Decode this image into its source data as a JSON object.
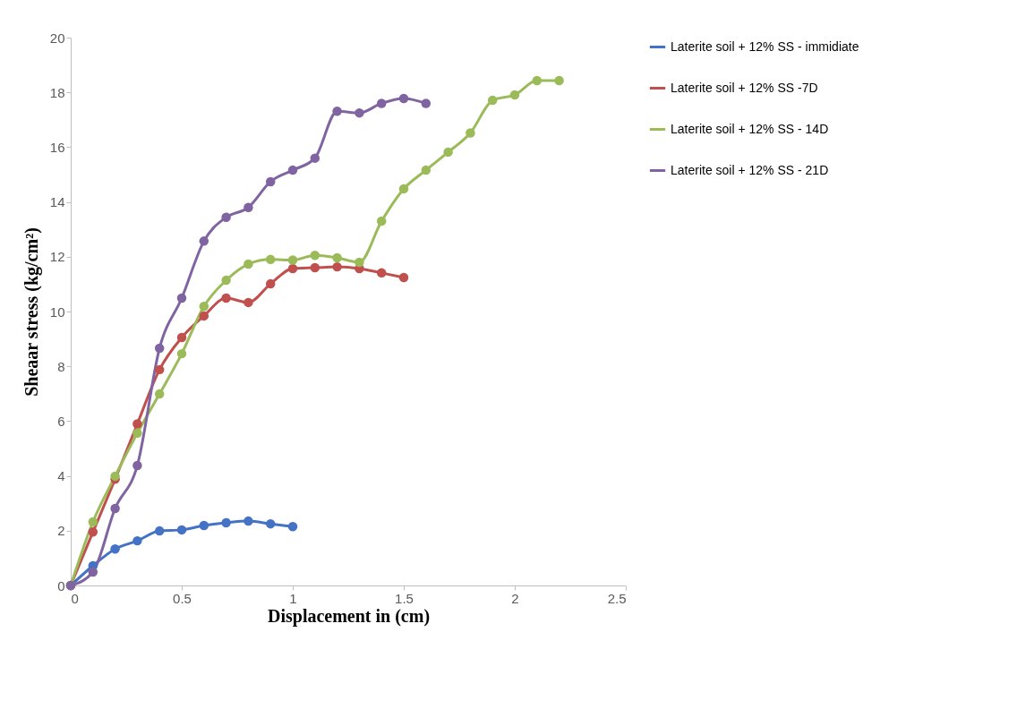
{
  "chart_data": {
    "type": "line",
    "xlabel": "Displacement in (cm)",
    "ylabel": "Sheaar stress (kg/cm²)",
    "xlim": [
      0,
      2.5
    ],
    "xticks": [
      0,
      0.5,
      1,
      1.5,
      2,
      2.5
    ],
    "ylim": [
      0,
      20
    ],
    "yticks": [
      0,
      2,
      4,
      6,
      8,
      10,
      12,
      14,
      16,
      18,
      20
    ],
    "grid": false,
    "legend": "right",
    "marker": "circle",
    "line_style": "solid",
    "series": [
      {
        "name": "Laterite soil + 12% SS - immidiate",
        "color": "#4472c4",
        "x": [
          0,
          0.1,
          0.2,
          0.3,
          0.4,
          0.5,
          0.6,
          0.7,
          0.8,
          0.9,
          1.0
        ],
        "values": [
          0,
          0.72,
          1.33,
          1.63,
          1.99,
          2.03,
          2.19,
          2.29,
          2.35,
          2.25,
          2.15
        ]
      },
      {
        "name": "Laterite soil + 12% SS -7D",
        "color": "#c0504d",
        "x": [
          0,
          0.1,
          0.2,
          0.3,
          0.4,
          0.5,
          0.6,
          0.7,
          0.8,
          0.9,
          1.0,
          1.1,
          1.2,
          1.3,
          1.4,
          1.5
        ],
        "values": [
          0,
          1.95,
          3.88,
          5.9,
          7.88,
          9.05,
          9.84,
          10.49,
          10.33,
          11.01,
          11.57,
          11.6,
          11.63,
          11.57,
          11.41,
          11.24
        ]
      },
      {
        "name": "Laterite soil + 12% SS - 14D",
        "color": "#9bbb59",
        "x": [
          0,
          0.1,
          0.2,
          0.3,
          0.4,
          0.5,
          0.6,
          0.7,
          0.8,
          0.9,
          1.0,
          1.1,
          1.2,
          1.3,
          1.4,
          1.5,
          1.6,
          1.7,
          1.8,
          1.9,
          2.0,
          2.1,
          2.2
        ],
        "values": [
          0,
          2.32,
          3.99,
          5.56,
          6.99,
          8.46,
          10.19,
          11.14,
          11.73,
          11.9,
          11.88,
          12.05,
          11.96,
          11.8,
          13.3,
          14.48,
          15.16,
          15.82,
          16.52,
          17.71,
          17.91,
          18.43,
          18.43
        ]
      },
      {
        "name": "Laterite soil + 12% SS - 21D",
        "color": "#8064a2",
        "x": [
          0,
          0.1,
          0.2,
          0.3,
          0.4,
          0.5,
          0.6,
          0.7,
          0.8,
          0.9,
          1.0,
          1.1,
          1.2,
          1.3,
          1.4,
          1.5,
          1.6
        ],
        "values": [
          0,
          0.49,
          2.81,
          4.38,
          8.66,
          10.49,
          12.57,
          13.44,
          13.8,
          14.74,
          15.16,
          15.6,
          17.31,
          17.25,
          17.6,
          17.78,
          17.6
        ]
      }
    ]
  }
}
